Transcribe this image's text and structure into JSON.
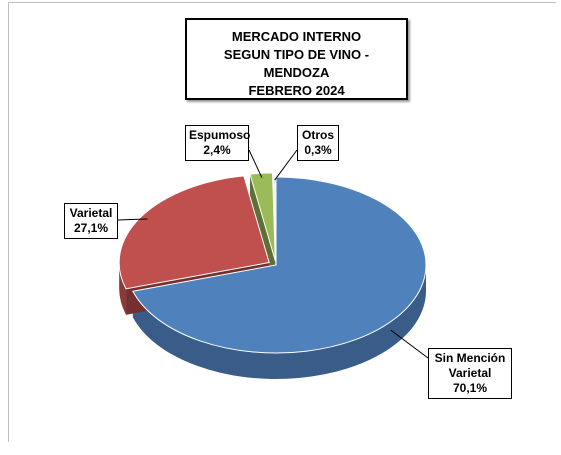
{
  "chart_data": {
    "type": "pie",
    "title": [
      "MERCADO INTERNO",
      "SEGUN TIPO DE VINO - MENDOZA",
      "FEBRERO 2024"
    ],
    "categories": [
      "Sin Mención Varietal",
      "Varietal",
      "Espumoso",
      "Otros"
    ],
    "values": [
      70.1,
      27.1,
      2.4,
      0.3
    ],
    "value_labels": [
      "70,1%",
      "27,1%",
      "2,4%",
      "0,3%"
    ],
    "colors": [
      "#4f81bd",
      "#c0504d",
      "#9bbb59",
      "#eef1f5"
    ]
  }
}
